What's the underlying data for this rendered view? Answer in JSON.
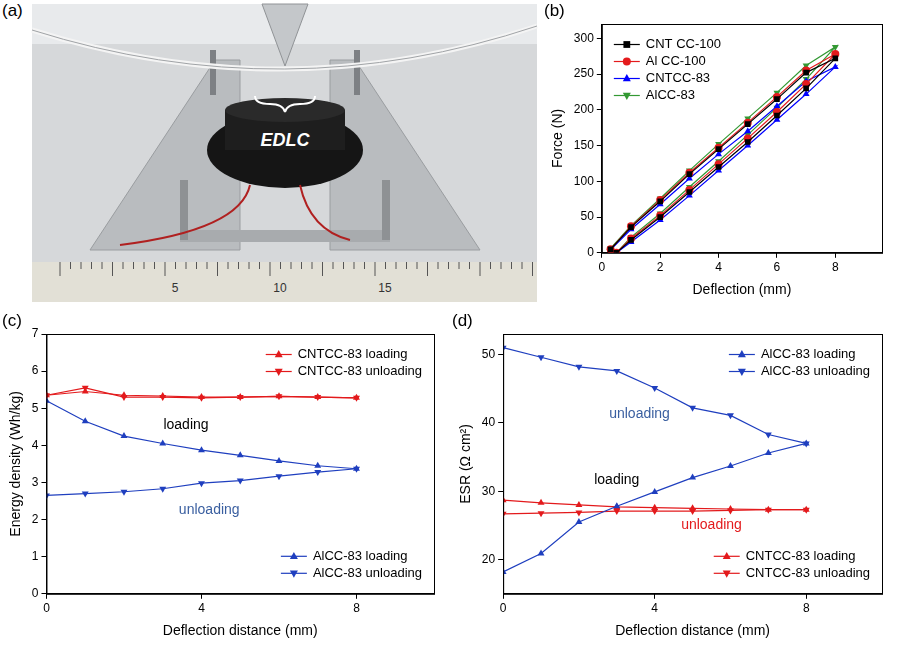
{
  "photo": {
    "panel_label": "(a)",
    "label": "EDLC",
    "ruler_labels": [
      "5",
      "10",
      "15"
    ]
  },
  "chart_data": [
    {
      "panel_label": "(b)",
      "type": "line",
      "xlabel": "Deflection (mm)",
      "ylabel": "Force (N)",
      "xlim": [
        0,
        9.6
      ],
      "xticks": [
        0,
        2,
        4,
        6,
        8
      ],
      "ylim": [
        0,
        320
      ],
      "yticks": [
        0,
        50,
        100,
        150,
        200,
        250,
        300
      ],
      "grid": false,
      "legend": "upper left",
      "series": [
        {
          "name": "CNT CC-100",
          "color": "#000000",
          "marker": "square",
          "x": [
            0.5,
            1,
            2,
            3,
            4,
            5,
            6,
            7,
            8,
            7,
            6,
            5,
            4,
            3,
            2,
            1,
            0.3
          ],
          "values": [
            0,
            18,
            50,
            85,
            120,
            155,
            192,
            230,
            272,
            252,
            215,
            180,
            145,
            110,
            72,
            36,
            5
          ]
        },
        {
          "name": "Al CC-100",
          "color": "#e41a1c",
          "marker": "circle",
          "x": [
            0.5,
            1,
            2,
            3,
            4,
            5,
            6,
            7,
            8,
            7,
            6,
            5,
            4,
            3,
            2,
            1,
            0.3
          ],
          "values": [
            0,
            20,
            52,
            88,
            124,
            160,
            197,
            236,
            278,
            255,
            218,
            182,
            147,
            112,
            74,
            37,
            5
          ]
        },
        {
          "name": "CNTCC-83",
          "color": "#0000ff",
          "marker": "triangle",
          "x": [
            0.5,
            1,
            2,
            3,
            4,
            5,
            6,
            7,
            8,
            7,
            6,
            5,
            4,
            3,
            2,
            1,
            0.3
          ],
          "values": [
            0,
            15,
            46,
            80,
            115,
            150,
            186,
            222,
            260,
            240,
            205,
            170,
            138,
            104,
            68,
            33,
            4
          ]
        },
        {
          "name": "AlCC-83",
          "color": "#339933",
          "marker": "triangle_down",
          "x": [
            0.5,
            1,
            2,
            3,
            4,
            5,
            6,
            7,
            8,
            7,
            6,
            5,
            4,
            3,
            2,
            1,
            0.3
          ],
          "values": [
            0,
            22,
            55,
            92,
            128,
            165,
            203,
            243,
            288,
            262,
            224,
            188,
            152,
            115,
            76,
            38,
            6
          ]
        }
      ]
    },
    {
      "panel_label": "(c)",
      "type": "line",
      "xlabel": "Deflection distance (mm)",
      "ylabel": "Energy density (Wh/kg)",
      "xlim": [
        0,
        10
      ],
      "xticks": [
        0,
        4,
        8
      ],
      "ylim": [
        0,
        7
      ],
      "yticks": [
        0,
        1,
        2,
        3,
        4,
        5,
        6,
        7
      ],
      "grid": false,
      "annotations": [
        {
          "text": "loading",
          "x": 3.6,
          "y": 4.55,
          "color": "#000000"
        },
        {
          "text": "unloading",
          "x": 4.2,
          "y": 2.25,
          "color": "#3a5fa0"
        }
      ],
      "series": [
        {
          "name": "CNTCC-83 loading",
          "color": "#e31a1c",
          "marker": "triangle",
          "legend": "upper right",
          "x": [
            0,
            1,
            2,
            3,
            4,
            5,
            6,
            7,
            8
          ],
          "values": [
            5.35,
            5.45,
            5.35,
            5.33,
            5.3,
            5.3,
            5.32,
            5.3,
            5.28
          ]
        },
        {
          "name": "CNTCC-83 unloading",
          "color": "#e31a1c",
          "marker": "triangle_down",
          "legend": "upper right",
          "x": [
            0,
            1,
            2,
            3,
            4,
            5,
            6,
            7,
            8
          ],
          "values": [
            5.35,
            5.55,
            5.3,
            5.3,
            5.28,
            5.3,
            5.32,
            5.3,
            5.28
          ]
        },
        {
          "name": "AlCC-83 loading",
          "color": "#1f3fbf",
          "marker": "triangle",
          "legend": "lower right",
          "x": [
            0,
            1,
            2,
            3,
            4,
            5,
            6,
            7,
            8
          ],
          "values": [
            5.2,
            4.65,
            4.25,
            4.05,
            3.87,
            3.73,
            3.58,
            3.45,
            3.37
          ]
        },
        {
          "name": "AlCC-83 unloading",
          "color": "#1f3fbf",
          "marker": "triangle_down",
          "legend": "lower right",
          "x": [
            0,
            1,
            2,
            3,
            4,
            5,
            6,
            7,
            8
          ],
          "values": [
            2.65,
            2.7,
            2.75,
            2.83,
            2.98,
            3.05,
            3.17,
            3.28,
            3.37
          ]
        }
      ]
    },
    {
      "panel_label": "(d)",
      "type": "line",
      "xlabel": "Deflection distance (mm)",
      "ylabel": "ESR (Ω cm²)",
      "xlim": [
        0,
        10
      ],
      "xticks": [
        0,
        4,
        8
      ],
      "ylim": [
        15,
        53
      ],
      "yticks": [
        20,
        30,
        40,
        50
      ],
      "grid": false,
      "annotations": [
        {
          "text": "unloading",
          "x": 3.6,
          "y": 41.3,
          "color": "#3a5fa0"
        },
        {
          "text": "loading",
          "x": 3.0,
          "y": 31.6,
          "color": "#000000"
        },
        {
          "text": "unloading",
          "x": 5.5,
          "y": 25.0,
          "color": "#e31a1c"
        }
      ],
      "series": [
        {
          "name": "AlCC-83 loading",
          "color": "#1f3fbf",
          "marker": "triangle",
          "legend": "upper right",
          "x": [
            0,
            1,
            2,
            3,
            4,
            5,
            6,
            7,
            8
          ],
          "values": [
            18.2,
            20.9,
            25.5,
            27.8,
            29.9,
            32,
            33.7,
            35.6,
            37
          ]
        },
        {
          "name": "AlCC-83 unloading",
          "color": "#1f3fbf",
          "marker": "triangle_down",
          "legend": "upper right",
          "x": [
            0,
            1,
            2,
            3,
            4,
            5,
            6,
            7,
            8
          ],
          "values": [
            51,
            49.6,
            48.2,
            47.6,
            45.1,
            42.2,
            41.1,
            38.3,
            37
          ]
        },
        {
          "name": "CNTCC-83 loading",
          "color": "#e31a1c",
          "marker": "triangle",
          "legend": "lower right",
          "x": [
            0,
            1,
            2,
            3,
            4,
            5,
            6,
            7,
            8
          ],
          "values": [
            28.7,
            28.3,
            28,
            27.7,
            27.6,
            27.5,
            27.4,
            27.3,
            27.3
          ]
        },
        {
          "name": "CNTCC-83 unloading",
          "color": "#e31a1c",
          "marker": "triangle_down",
          "legend": "lower right",
          "x": [
            0,
            1,
            2,
            3,
            4,
            5,
            6,
            7,
            8
          ],
          "values": [
            26.7,
            26.8,
            26.9,
            27.1,
            27.1,
            27.1,
            27.2,
            27.3,
            27.3
          ]
        }
      ]
    }
  ]
}
